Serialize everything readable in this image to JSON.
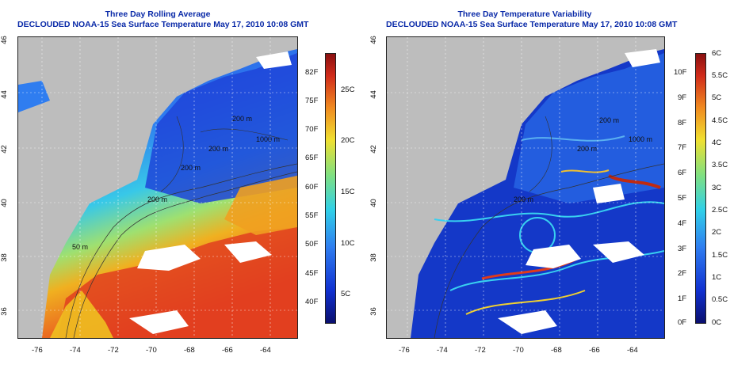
{
  "left_panel": {
    "title_line1": "Three Day Rolling Average",
    "title_line2": "DECLOUDED NOAA-15 Sea Surface Temperature May 17, 2010 10:08 GMT",
    "lat_ticks": [
      "46",
      "44",
      "42",
      "40",
      "38",
      "36"
    ],
    "lon_ticks": [
      "-76",
      "-74",
      "-72",
      "-70",
      "-68",
      "-66",
      "-64"
    ],
    "contour_labels": [
      "200 m",
      "200 m",
      "1000 m",
      "200 m",
      "200 m",
      "50 m"
    ],
    "colorbar_left_labels": [
      "82F",
      "75F",
      "70F",
      "65F",
      "60F",
      "55F",
      "50F",
      "45F",
      "40F"
    ],
    "colorbar_right_labels": [
      "25C",
      "20C",
      "15C",
      "10C",
      "5C"
    ]
  },
  "right_panel": {
    "title_line1": "Three Day Temperature Variability",
    "title_line2": "DECLOUDED NOAA-15 Sea Surface Temperature May 17, 2010 10:08 GMT",
    "lat_ticks": [
      "46",
      "44",
      "42",
      "40",
      "38",
      "36"
    ],
    "lon_ticks": [
      "-76",
      "-74",
      "-72",
      "-70",
      "-68",
      "-66",
      "-64"
    ],
    "contour_labels": [
      "200 m",
      "200 m",
      "1000 m",
      "200 m"
    ],
    "colorbar_left_labels": [
      "10F",
      "9F",
      "8F",
      "7F",
      "6F",
      "5F",
      "4F",
      "3F",
      "2F",
      "1F",
      "0F"
    ],
    "colorbar_right_labels": [
      "6C",
      "5.5C",
      "5C",
      "4.5C",
      "4C",
      "3.5C",
      "3C",
      "2.5C",
      "2C",
      "1.5C",
      "1C",
      "0.5C",
      "0C"
    ]
  },
  "colors": {
    "land": "#bdbdbd",
    "title": "#0a2aa8",
    "cloud": "#ffffff"
  }
}
